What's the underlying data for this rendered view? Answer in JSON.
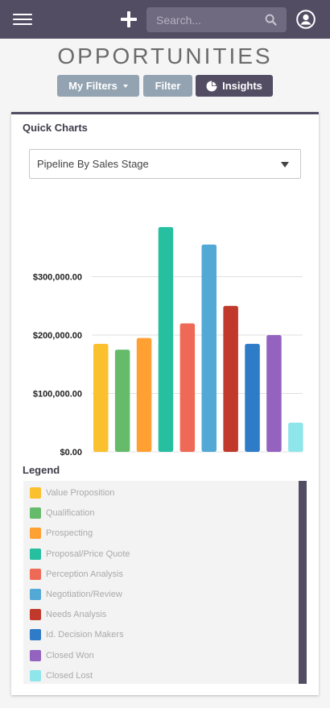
{
  "header": {
    "search_placeholder": "Search...",
    "colors": {
      "bar": "#534d64",
      "search_bg": "#6f6a7f"
    }
  },
  "page_title": "OPPORTUNITIES",
  "actions": {
    "my_filters_label": "My Filters",
    "filter_label": "Filter",
    "insights_label": "Insights"
  },
  "panel": {
    "title": "Quick Charts",
    "chart_select_value": "Pipeline By Sales Stage",
    "legend_title": "Legend"
  },
  "chart_data": {
    "type": "bar",
    "categories": [
      "Value Proposition",
      "Qualification",
      "Prospecting",
      "Proposal/Price Quote",
      "Perception Analysis",
      "Negotiation/Review",
      "Needs Analysis",
      "Id. Decision Makers",
      "Closed Won",
      "Closed Lost"
    ],
    "values": [
      185000,
      175000,
      195000,
      385000,
      220000,
      355000,
      250000,
      185000,
      200000,
      50000
    ],
    "colors": [
      "#fbc02d",
      "#66bb6a",
      "#ffa033",
      "#26bfa0",
      "#ee6a56",
      "#53a9d6",
      "#c0392b",
      "#2e7bc8",
      "#9363bf",
      "#8fe6ea"
    ],
    "yticks": [
      0,
      100000,
      200000,
      300000
    ],
    "ytick_labels": [
      "$0.00",
      "$100,000.00",
      "$200,000.00",
      "$300,000.00"
    ],
    "ylim": [
      0,
      400000
    ],
    "grid": true,
    "legend_position": "bottom"
  }
}
